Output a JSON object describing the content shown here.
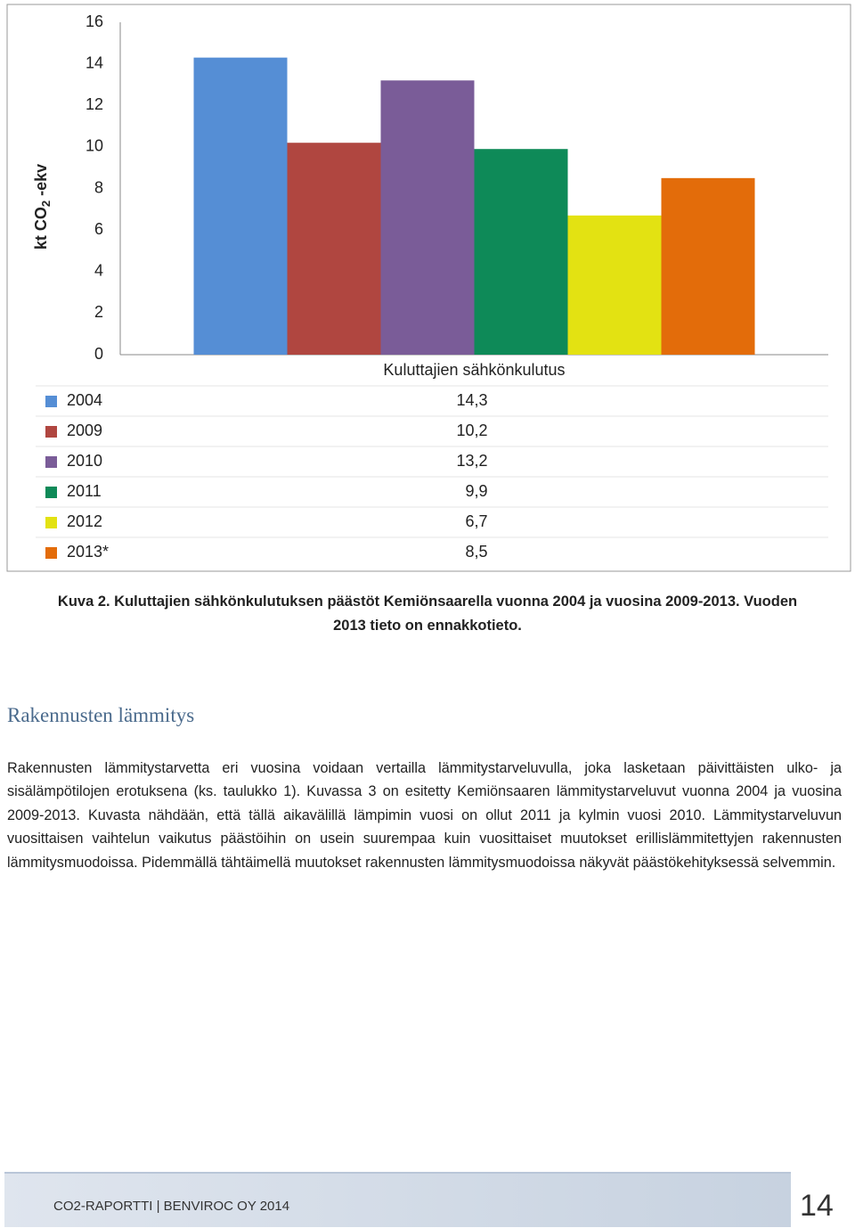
{
  "chart_data": {
    "type": "bar",
    "y_label": {
      "text": "kt CO",
      "subscript": "2",
      "suffix": " -ekv"
    },
    "categories": [
      "Kuluttajien sähkönkulutus"
    ],
    "series": [
      {
        "name": "2004",
        "color": "#558ed5",
        "values": [
          14.3
        ],
        "value_labels": [
          "14,3"
        ]
      },
      {
        "name": "2009",
        "color": "#b04640",
        "values": [
          10.2
        ],
        "value_labels": [
          "10,2"
        ]
      },
      {
        "name": "2010",
        "color": "#7a5c98",
        "values": [
          13.2
        ],
        "value_labels": [
          "13,2"
        ]
      },
      {
        "name": "2011",
        "color": "#0e8a58",
        "values": [
          9.9
        ],
        "value_labels": [
          "9,9"
        ]
      },
      {
        "name": "2012",
        "color": "#e3e212",
        "values": [
          6.7
        ],
        "value_labels": [
          "6,7"
        ]
      },
      {
        "name": "2013*",
        "color": "#e36c0a",
        "values": [
          8.5
        ],
        "value_labels": [
          "8,5"
        ]
      }
    ],
    "ylim": [
      0,
      16
    ],
    "yticks": [
      0,
      2,
      4,
      6,
      8,
      10,
      12,
      14,
      16
    ],
    "grid": false
  },
  "caption": "Kuva 2. Kuluttajien sähkönkulutuksen päästöt Kemiönsaarella vuonna 2004 ja vuosina 2009-2013. Vuoden 2013 tieto on ennakkotieto.",
  "section_title": "Rakennusten lämmitys",
  "paragraph": "Rakennusten lämmitystarvetta eri vuosina voidaan vertailla lämmitystarveluvulla, joka lasketaan päivittäisten ulko- ja sisälämpötilojen erotuksena (ks. taulukko 1). Kuvassa 3 on esitetty Kemiönsaaren lämmitystarveluvut vuonna 2004 ja vuosina 2009-2013. Kuvasta nähdään, että tällä aikavälillä lämpimin vuosi on ollut 2011 ja kylmin vuosi 2010. Lämmitystarveluvun vuosittaisen vaihtelun vaikutus päästöihin on usein suurempaa kuin vuosittaiset muutokset erillislämmitettyjen rakennusten lämmitysmuodoissa. Pidemmällä tähtäimellä muutokset rakennusten lämmitysmuodoissa näkyvät päästökehityksessä selvemmin.",
  "footer": {
    "text": "CO2-RAPORTTI | BENVIROC OY 2014",
    "page_number": "14"
  }
}
